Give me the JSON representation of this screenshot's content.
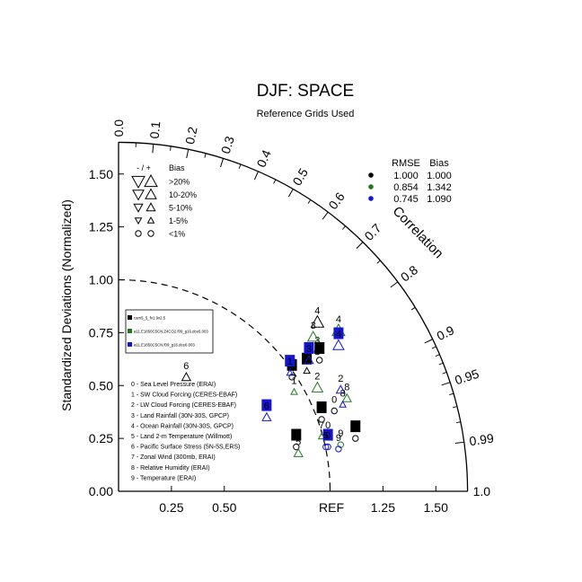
{
  "chart_data": {
    "type": "scatter",
    "subtype": "taylor-diagram",
    "title": "DJF: SPACE",
    "subtitle": "Reference Grids Used",
    "ylabel": "Standardized Deviations (Normalized)",
    "arc_label": "Correlation",
    "ref_label": "REF",
    "radius_max": 1.65,
    "y_ticks": [
      "0.00",
      "0.25",
      "0.50",
      "0.75",
      "1.00",
      "1.25",
      "1.50"
    ],
    "x_ticks": [
      "0.25",
      "0.50",
      "1.25",
      "1.50"
    ],
    "correlation_ticks": [
      "0.0",
      "0.1",
      "0.2",
      "0.3",
      "0.4",
      "0.5",
      "0.6",
      "0.7",
      "0.8",
      "0.9",
      "0.95",
      "0.99",
      "1.0"
    ],
    "correlation_values": [
      0.0,
      0.1,
      0.2,
      0.3,
      0.4,
      0.5,
      0.6,
      0.7,
      0.8,
      0.9,
      0.95,
      0.99,
      1.0
    ],
    "stats": {
      "headers": [
        "RMSE",
        "Bias"
      ],
      "rows": [
        {
          "rmse": "1.000",
          "bias": "1.000",
          "color": "#000000"
        },
        {
          "rmse": "0.854",
          "bias": "1.342",
          "color": "#1e7a1e"
        },
        {
          "rmse": "0.745",
          "bias": "1.090",
          "color": "#1414d2"
        }
      ]
    },
    "bias_legend": {
      "header_sign": "- / +",
      "header_label": "Bias",
      "rows": [
        ">20%",
        "10-20%",
        "5-10%",
        "1-5%",
        "<1%"
      ]
    },
    "cases": [
      {
        "label": "cam5_5_fv1.9x2.5",
        "color": "#000000"
      },
      {
        "label": "a11.E1850C5CN.Z4CO2.f09_g16.dce6.003",
        "color": "#1e7a1e"
      },
      {
        "label": "a11.E1850C5CN.f09_g16.dce6.003",
        "color": "#1414d2"
      }
    ],
    "variables": [
      "0 - Sea Level Pressure (ERAI)",
      "1 - SW Cloud Forcing (CERES-EBAF)",
      "2 - LW Cloud Forcing (CERES-EBAF)",
      "3 - Land Rainfall (30N-30S, GPCP)",
      "4 - Ocean Rainfall (30N-30S, GPCP)",
      "5 - Land 2-m Temperature (Willmott)",
      "6 - Pacific Surface Stress (5N-5S,ERS)",
      "7 - Zonal Wind (300mb, ERAI)",
      "8 - Relative Humidity (ERAI)",
      "9 - Temperature (ERAI)"
    ],
    "points": [
      {
        "case": 0,
        "var": "0",
        "x": 1.02,
        "y": 0.38,
        "bias": "<1%",
        "dir": "+",
        "boxed": false
      },
      {
        "case": 0,
        "var": "1",
        "x": 0.82,
        "y": 0.54,
        "bias": "<1%",
        "dir": "+",
        "boxed": true
      },
      {
        "case": 0,
        "var": "2",
        "x": 0.95,
        "y": 0.62,
        "bias": "<1%",
        "dir": "+",
        "boxed": true
      },
      {
        "case": 0,
        "var": "3",
        "x": 0.94,
        "y": 0.66,
        "bias": "<1%",
        "dir": "+",
        "boxed": false
      },
      {
        "case": 0,
        "var": "4",
        "x": 0.94,
        "y": 0.8,
        "bias": ">20%",
        "dir": "+",
        "boxed": false
      },
      {
        "case": 0,
        "var": "5",
        "x": 0.84,
        "y": 0.21,
        "bias": "<1%",
        "dir": "+",
        "boxed": true
      },
      {
        "case": 0,
        "var": "6",
        "x": 0.32,
        "y": 0.54,
        "bias": "5-10%",
        "dir": "+",
        "boxed": false
      },
      {
        "case": 0,
        "var": "7",
        "x": 0.96,
        "y": 0.34,
        "bias": "<1%",
        "dir": "+",
        "boxed": true
      },
      {
        "case": 0,
        "var": "8",
        "x": 0.89,
        "y": 0.57,
        "bias": "1-5%",
        "dir": "+",
        "boxed": true
      },
      {
        "case": 0,
        "var": "9",
        "x": 1.12,
        "y": 0.25,
        "bias": "<1%",
        "dir": "+",
        "boxed": true
      },
      {
        "case": 1,
        "var": "0",
        "x": 0.99,
        "y": 0.26,
        "bias": "1-5%",
        "dir": "+",
        "boxed": false
      },
      {
        "case": 1,
        "var": "1",
        "x": 0.83,
        "y": 0.47,
        "bias": "1-5%",
        "dir": "+",
        "boxed": false
      },
      {
        "case": 1,
        "var": "2",
        "x": 0.94,
        "y": 0.49,
        "bias": "10-20%",
        "dir": "+",
        "boxed": false
      },
      {
        "case": 1,
        "var": "3",
        "x": 0.92,
        "y": 0.73,
        "bias": "10-20%",
        "dir": "+",
        "boxed": false
      },
      {
        "case": 1,
        "var": "4",
        "x": 1.04,
        "y": 0.76,
        "bias": ">20%",
        "dir": "+",
        "boxed": false
      },
      {
        "case": 1,
        "var": "5",
        "x": 0.85,
        "y": 0.18,
        "bias": "5-10%",
        "dir": "+",
        "boxed": false
      },
      {
        "case": 1,
        "var": "7",
        "x": 0.96,
        "y": 0.26,
        "bias": "1-5%",
        "dir": "+",
        "boxed": false
      },
      {
        "case": 1,
        "var": "8",
        "x": 1.08,
        "y": 0.44,
        "bias": "5-10%",
        "dir": "+",
        "boxed": false
      },
      {
        "case": 1,
        "var": "9",
        "x": 1.05,
        "y": 0.22,
        "bias": "<1%",
        "dir": "+",
        "boxed": false
      },
      {
        "case": 2,
        "var": "0",
        "x": 0.99,
        "y": 0.21,
        "bias": "<1%",
        "dir": "+",
        "boxed": true
      },
      {
        "case": 2,
        "var": "1",
        "x": 0.81,
        "y": 0.56,
        "bias": "1-5%",
        "dir": "+",
        "boxed": true
      },
      {
        "case": 2,
        "var": "2",
        "x": 1.05,
        "y": 0.48,
        "bias": "5-10%",
        "dir": "+",
        "boxed": false
      },
      {
        "case": 2,
        "var": "3",
        "x": 0.9,
        "y": 0.62,
        "bias": "5-10%",
        "dir": "+",
        "boxed": true
      },
      {
        "case": 2,
        "var": "4",
        "x": 1.04,
        "y": 0.69,
        "bias": "10-20%",
        "dir": "+",
        "boxed": true
      },
      {
        "case": 2,
        "var": "5",
        "x": 0.98,
        "y": 0.21,
        "bias": "<1%",
        "dir": "+",
        "boxed": false
      },
      {
        "case": 2,
        "var": "6",
        "x": 0.7,
        "y": 0.35,
        "bias": "5-10%",
        "dir": "+",
        "boxed": true
      },
      {
        "case": 2,
        "var": "8",
        "x": 1.06,
        "y": 0.41,
        "bias": "1-5%",
        "dir": "+",
        "boxed": false
      },
      {
        "case": 2,
        "var": "9",
        "x": 1.04,
        "y": 0.2,
        "bias": "<1%",
        "dir": "+",
        "boxed": false
      }
    ]
  }
}
